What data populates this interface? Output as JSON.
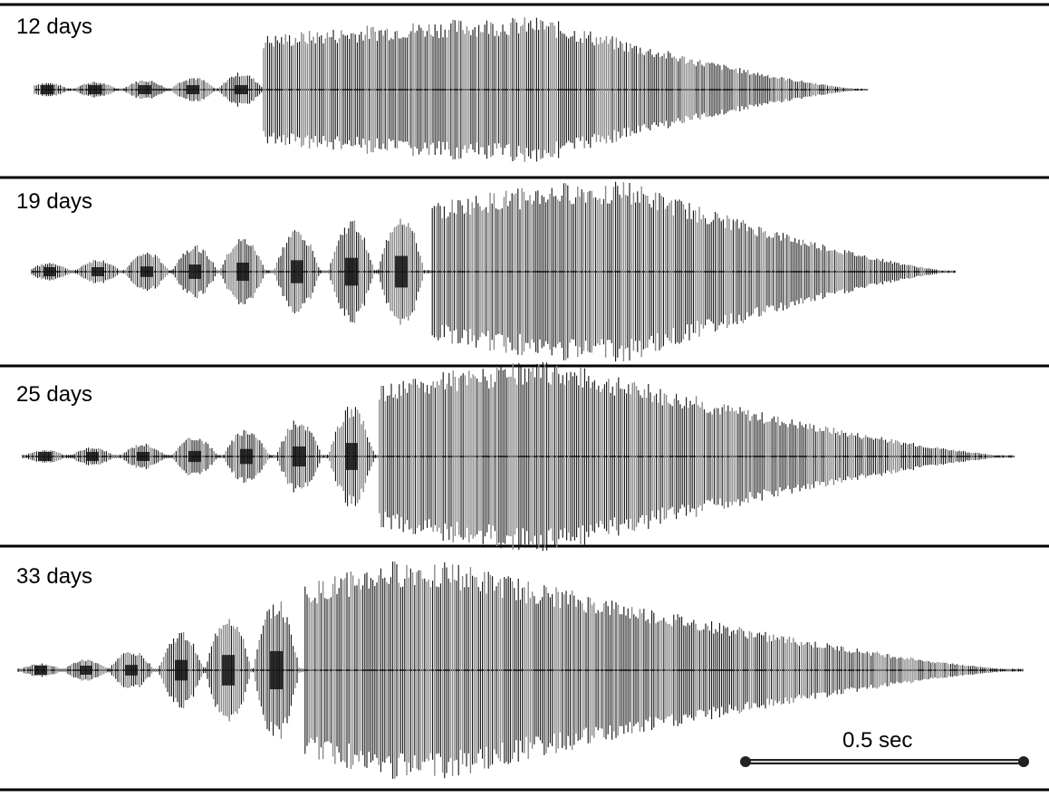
{
  "panels": [
    {
      "label": "12 days"
    },
    {
      "label": "19 days"
    },
    {
      "label": "25 days"
    },
    {
      "label": "33 days"
    }
  ],
  "scale_bar": {
    "label": "0.5 sec",
    "duration_sec": 0.5
  },
  "colors": {
    "trace_dark": "#111111",
    "trace_light": "#8a8a8a",
    "rule": "#000000",
    "scale_bar": "#222222",
    "scale_bar_inner": "#d0d0d0"
  }
}
